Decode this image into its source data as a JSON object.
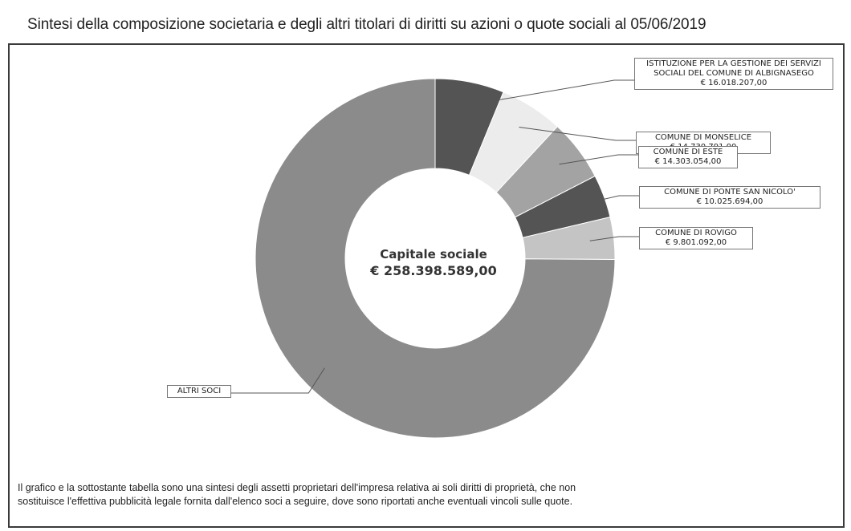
{
  "header": {
    "title": "Sintesi della composizione societaria e degli altri titolari di diritti su azioni o quote sociali al 05/06/2019"
  },
  "center": {
    "label": "Capitale sociale",
    "amount": "€ 258.398.589,00"
  },
  "footnote": {
    "line1": "Il grafico e la sottostante tabella sono una sintesi degli assetti proprietari dell'impresa relativa ai soli diritti di proprietà, che non",
    "line2": "sostituisce l'effettiva pubblicità legale fornita dall'elenco soci a seguire, dove sono riportati anche eventuali vincoli sulle quote."
  },
  "labels": [
    {
      "name": "ISTITUZIONE PER LA GESTIONE DEI SERVIZI SOCIALI DEL COMUNE DI ALBIGNASEGO",
      "amount": "€ 16.018.207,00"
    },
    {
      "name": "COMUNE DI MONSELICE",
      "amount": "€ 14.730.791,00"
    },
    {
      "name": "COMUNE DI ESTE",
      "amount": "€ 14.303.054,00"
    },
    {
      "name": "COMUNE DI PONTE SAN NICOLO'",
      "amount": "€ 10.025.694,00"
    },
    {
      "name": "COMUNE DI ROVIGO",
      "amount": "€ 9.801.092,00"
    },
    {
      "name": "ALTRI SOCI",
      "amount": ""
    }
  ],
  "chart_data": {
    "type": "pie",
    "donut": true,
    "total": 258398589.0,
    "categories": [
      "ISTITUZIONE PER LA GESTIONE DEI SERVIZI SOCIALI DEL COMUNE DI ALBIGNASEGO",
      "COMUNE DI MONSELICE",
      "COMUNE DI ESTE",
      "COMUNE DI PONTE SAN NICOLO'",
      "COMUNE DI ROVIGO",
      "ALTRI SOCI"
    ],
    "values": [
      16018207.0,
      14730791.0,
      14303054.0,
      10025694.0,
      9801092.0,
      193519751.0
    ],
    "colors": [
      "#545454",
      "#ececec",
      "#a3a3a3",
      "#545454",
      "#c4c4c4",
      "#8b8b8b"
    ],
    "legend": "callout labels"
  }
}
